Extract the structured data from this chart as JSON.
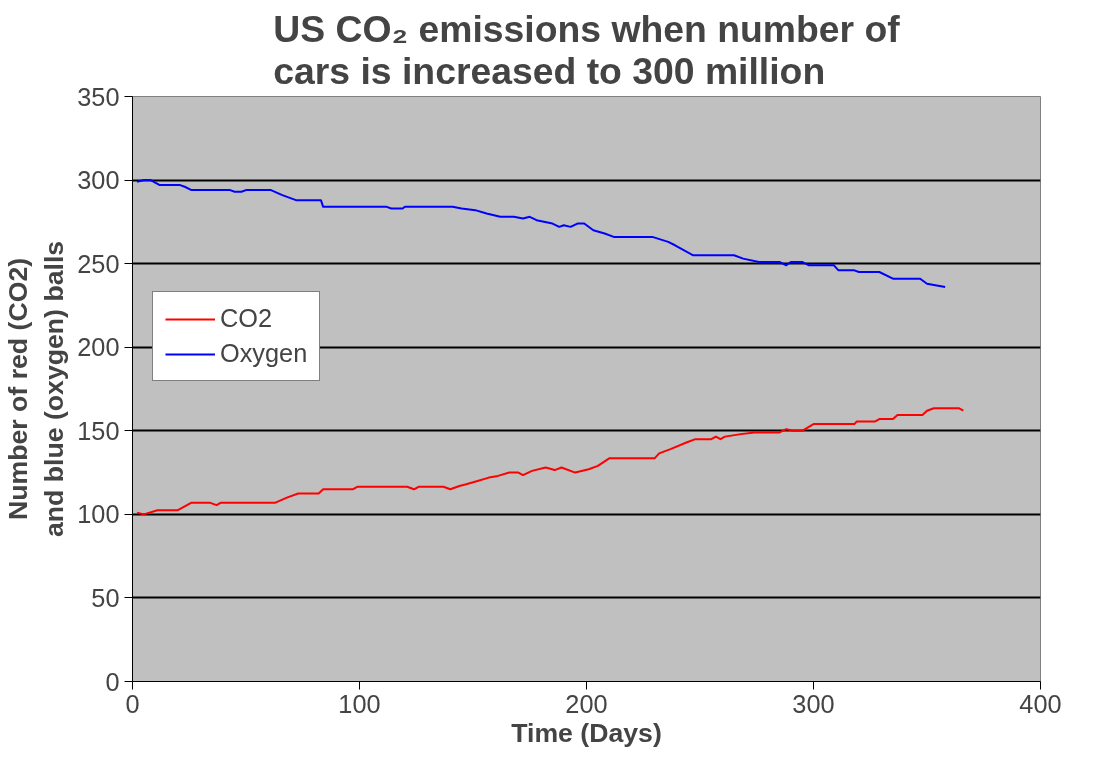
{
  "chart_data": {
    "type": "line",
    "title": "US CO₂ emissions when number of cars is increased to 300 million",
    "xlabel": "Time (Days)",
    "ylabel": "Number of red (CO2) and blue (oxygen) balls",
    "xlim": [
      0,
      400
    ],
    "xticks": [
      0,
      100,
      200,
      300,
      400
    ],
    "ylim": [
      0,
      350
    ],
    "yticks": [
      0,
      50,
      100,
      150,
      200,
      250,
      300,
      350
    ],
    "grid": "y",
    "legend": "left",
    "marker": "none",
    "line_style": "solid",
    "series": [
      {
        "name": "CO2",
        "color": "#ff0000",
        "x": [
          2,
          5,
          11,
          20,
          22,
          26,
          34,
          37,
          39,
          63,
          68,
          73,
          82,
          84,
          97,
          99,
          121,
          124,
          126,
          137,
          140,
          144,
          147,
          152,
          157,
          161,
          166,
          170,
          172,
          176,
          182,
          186,
          189,
          195,
          201,
          205,
          210,
          230,
          232,
          237,
          244,
          248,
          255,
          257,
          259,
          261,
          268,
          274,
          285,
          288,
          291,
          295,
          300,
          318,
          319,
          327,
          329,
          335,
          337,
          348,
          350,
          353,
          364,
          366
        ],
        "values": [
          101,
          100,
          102.5,
          102.5,
          104,
          107,
          107,
          105.5,
          107,
          107,
          110,
          112.5,
          112.5,
          115,
          115,
          116.5,
          116.5,
          115,
          116.5,
          116.5,
          115,
          117,
          118,
          120,
          122,
          123,
          125,
          125,
          123.5,
          126,
          128,
          126.5,
          128,
          125,
          127,
          129,
          133.5,
          133.5,
          136.5,
          139,
          143,
          145,
          145,
          146.5,
          145,
          146.5,
          148,
          149,
          149,
          151,
          150,
          150,
          154,
          154,
          155.5,
          155.5,
          157,
          157,
          159.5,
          159.5,
          162,
          163.5,
          163.5,
          162
        ]
      },
      {
        "name": "Oxygen",
        "color": "#0000ff",
        "x": [
          2,
          5,
          8,
          12,
          21,
          23,
          26,
          43,
          45,
          48,
          50,
          61,
          66,
          72,
          83,
          84,
          112,
          114,
          119,
          120,
          141,
          145,
          151,
          156,
          162,
          168,
          172,
          175,
          178,
          185,
          188,
          190,
          193,
          196,
          199,
          203,
          208,
          212,
          229,
          236,
          239,
          247,
          265,
          269,
          276,
          285,
          288,
          290,
          295,
          298,
          309,
          311,
          318,
          320,
          329,
          335,
          347,
          350,
          358
        ],
        "values": [
          299,
          300,
          300,
          297,
          297,
          296,
          294,
          294,
          293,
          293,
          294,
          294,
          291,
          288,
          288,
          284,
          284,
          283,
          283,
          284,
          284,
          283,
          282,
          280,
          278,
          278,
          277,
          278,
          276,
          274,
          272,
          273,
          272,
          274,
          274,
          270,
          268,
          266,
          266,
          263,
          261,
          255,
          255,
          253,
          251,
          251,
          249,
          251,
          251,
          249,
          249,
          246,
          246,
          245,
          245,
          241,
          241,
          238,
          236
        ]
      }
    ]
  }
}
